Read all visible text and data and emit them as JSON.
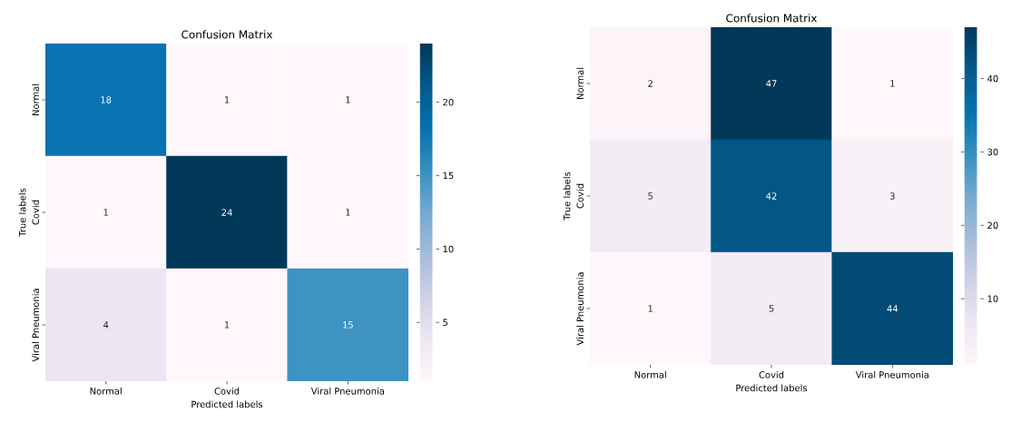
{
  "chart_data": [
    {
      "type": "heatmap",
      "title": "Confusion Matrix",
      "xlabel": "Predicted labels",
      "ylabel": "True labels",
      "categories": [
        "Normal",
        "Covid",
        "Viral Pneumonia"
      ],
      "y_categories": [
        "Normal",
        "Covid",
        "Viral Pneumonia"
      ],
      "cells": [
        [
          18,
          1,
          1
        ],
        [
          1,
          24,
          1
        ],
        [
          4,
          1,
          15
        ]
      ],
      "clim": [
        1,
        24
      ],
      "cticks": [
        5,
        10,
        15,
        20
      ],
      "data_labels": true
    },
    {
      "type": "heatmap",
      "title": "Confusion Matrix",
      "xlabel": "Predicted labels",
      "ylabel": "True labels",
      "categories": [
        "Normal",
        "Covid",
        "Viral Pneumonia"
      ],
      "y_categories": [
        "Normal",
        "Covid",
        "Viral Pneumonia"
      ],
      "cells": [
        [
          2,
          47,
          1
        ],
        [
          5,
          42,
          3
        ],
        [
          1,
          5,
          44
        ]
      ],
      "clim": [
        1,
        47
      ],
      "cticks": [
        10,
        20,
        30,
        40
      ],
      "data_labels": true
    }
  ]
}
